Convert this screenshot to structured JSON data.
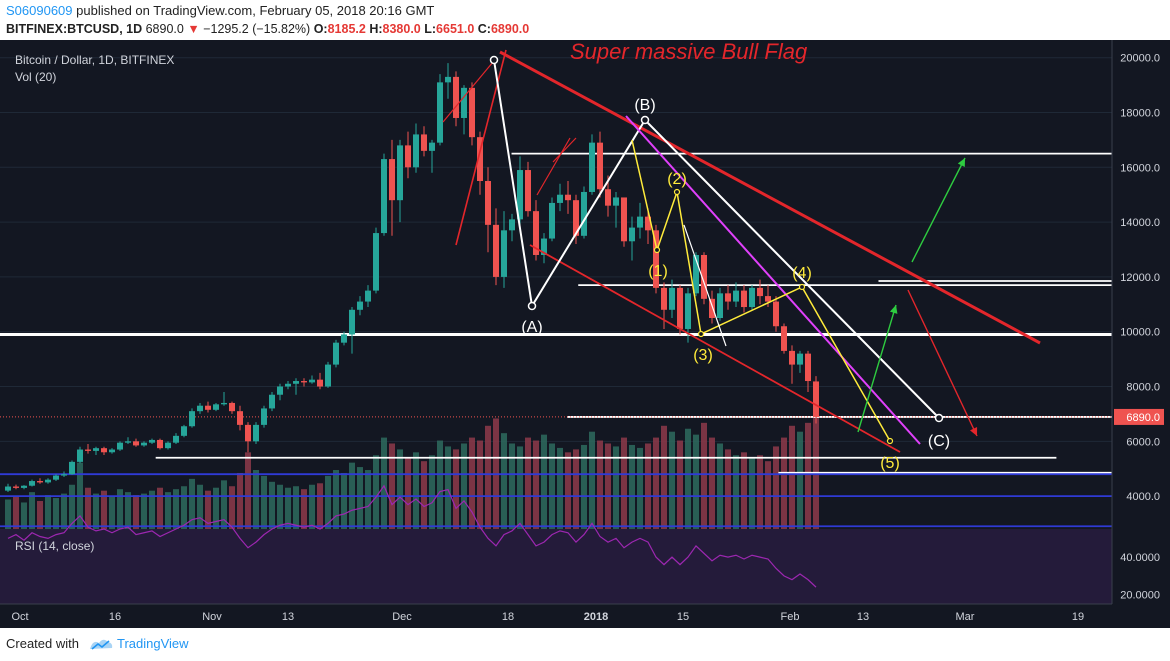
{
  "header": {
    "username": "S06090609",
    "published_text": "published on TradingView.com, February 05, 2018 20:16 GMT",
    "symbol": "BITFINEX:BTCUSD, 1D",
    "last_price": "6890.0",
    "change_text": "−1295.2 (−15.82%)",
    "o_label": "O:",
    "o_value": "8185.2",
    "h_label": "H:",
    "h_value": "8380.0",
    "l_label": "L:",
    "l_value": "6651.0",
    "c_label": "C:",
    "c_value": "6890.0"
  },
  "footer": {
    "created_with": "Created with",
    "brand": "TradingView"
  },
  "colors": {
    "bg": "#131722",
    "up": "#26a69a",
    "down": "#ef5350",
    "grid": "#1f2937",
    "rsi_bg": "#241b3a",
    "rsi_line": "#9c27b0",
    "price_badge": "#ef5350"
  },
  "chart_data": {
    "type": "candlestick",
    "title": "Bitcoin / Dollar, 1D, BITFINEX",
    "volume_label": "Vol (20)",
    "rsi_label": "RSI (14, close)",
    "annotation_title": "Super massive Bull Flag",
    "price_axis_ticks": [
      "20000.0",
      "18000.0",
      "16000.0",
      "14000.0",
      "12000.0",
      "10000.0",
      "8000.0",
      "6000.0",
      "4000.0"
    ],
    "rsi_axis_ticks": [
      "40.0000",
      "20.0000"
    ],
    "current_price_label": "6890.0",
    "x_ticks": [
      "Oct",
      "16",
      "Nov",
      "13",
      "Dec",
      "18",
      "2018",
      "15",
      "Feb",
      "13",
      "Mar",
      "19"
    ],
    "ylim": [
      2800,
      20500
    ],
    "rsi_ylim": [
      15,
      55
    ],
    "candles": [
      {
        "o": 4200,
        "h": 4450,
        "l": 4150,
        "c": 4350
      },
      {
        "o": 4350,
        "h": 4420,
        "l": 4250,
        "c": 4300
      },
      {
        "o": 4300,
        "h": 4400,
        "l": 4250,
        "c": 4380
      },
      {
        "o": 4380,
        "h": 4600,
        "l": 4350,
        "c": 4550
      },
      {
        "o": 4550,
        "h": 4650,
        "l": 4450,
        "c": 4500
      },
      {
        "o": 4500,
        "h": 4650,
        "l": 4450,
        "c": 4600
      },
      {
        "o": 4600,
        "h": 4800,
        "l": 4550,
        "c": 4750
      },
      {
        "o": 4750,
        "h": 4900,
        "l": 4700,
        "c": 4800
      },
      {
        "o": 4800,
        "h": 5300,
        "l": 4780,
        "c": 5250
      },
      {
        "o": 5250,
        "h": 5800,
        "l": 5200,
        "c": 5700
      },
      {
        "o": 5700,
        "h": 5900,
        "l": 5550,
        "c": 5650
      },
      {
        "o": 5650,
        "h": 5800,
        "l": 5500,
        "c": 5750
      },
      {
        "o": 5750,
        "h": 5800,
        "l": 5500,
        "c": 5600
      },
      {
        "o": 5600,
        "h": 5750,
        "l": 5550,
        "c": 5700
      },
      {
        "o": 5700,
        "h": 6000,
        "l": 5650,
        "c": 5950
      },
      {
        "o": 5950,
        "h": 6150,
        "l": 5900,
        "c": 6000
      },
      {
        "o": 6000,
        "h": 6100,
        "l": 5800,
        "c": 5850
      },
      {
        "o": 5850,
        "h": 6000,
        "l": 5800,
        "c": 5950
      },
      {
        "o": 5950,
        "h": 6100,
        "l": 5900,
        "c": 6050
      },
      {
        "o": 6050,
        "h": 6100,
        "l": 5700,
        "c": 5750
      },
      {
        "o": 5750,
        "h": 6000,
        "l": 5700,
        "c": 5950
      },
      {
        "o": 5950,
        "h": 6300,
        "l": 5900,
        "c": 6200
      },
      {
        "o": 6200,
        "h": 6600,
        "l": 6150,
        "c": 6550
      },
      {
        "o": 6550,
        "h": 7200,
        "l": 6500,
        "c": 7100
      },
      {
        "o": 7100,
        "h": 7400,
        "l": 7000,
        "c": 7300
      },
      {
        "o": 7300,
        "h": 7450,
        "l": 7050,
        "c": 7150
      },
      {
        "o": 7150,
        "h": 7400,
        "l": 7100,
        "c": 7350
      },
      {
        "o": 7350,
        "h": 7800,
        "l": 7300,
        "c": 7400
      },
      {
        "o": 7400,
        "h": 7450,
        "l": 7000,
        "c": 7100
      },
      {
        "o": 7100,
        "h": 7300,
        "l": 6400,
        "c": 6600
      },
      {
        "o": 6600,
        "h": 6700,
        "l": 5600,
        "c": 6000
      },
      {
        "o": 6000,
        "h": 6700,
        "l": 5900,
        "c": 6600
      },
      {
        "o": 6600,
        "h": 7300,
        "l": 6500,
        "c": 7200
      },
      {
        "o": 7200,
        "h": 7800,
        "l": 7100,
        "c": 7700
      },
      {
        "o": 7700,
        "h": 8100,
        "l": 7500,
        "c": 8000
      },
      {
        "o": 8000,
        "h": 8200,
        "l": 7900,
        "c": 8100
      },
      {
        "o": 8100,
        "h": 8300,
        "l": 7700,
        "c": 8200
      },
      {
        "o": 8200,
        "h": 8300,
        "l": 8000,
        "c": 8150
      },
      {
        "o": 8150,
        "h": 8400,
        "l": 8100,
        "c": 8250
      },
      {
        "o": 8250,
        "h": 8500,
        "l": 7900,
        "c": 8000
      },
      {
        "o": 8000,
        "h": 8900,
        "l": 7950,
        "c": 8800
      },
      {
        "o": 8800,
        "h": 9700,
        "l": 8700,
        "c": 9600
      },
      {
        "o": 9600,
        "h": 10000,
        "l": 9500,
        "c": 9900
      },
      {
        "o": 9900,
        "h": 10900,
        "l": 9200,
        "c": 10800
      },
      {
        "o": 10800,
        "h": 11300,
        "l": 10600,
        "c": 11100
      },
      {
        "o": 11100,
        "h": 11700,
        "l": 10900,
        "c": 11500
      },
      {
        "o": 11500,
        "h": 13800,
        "l": 11400,
        "c": 13600
      },
      {
        "o": 13600,
        "h": 16500,
        "l": 13500,
        "c": 16300
      },
      {
        "o": 16300,
        "h": 17000,
        "l": 13500,
        "c": 14800
      },
      {
        "o": 14800,
        "h": 17000,
        "l": 14000,
        "c": 16800
      },
      {
        "o": 16800,
        "h": 17300,
        "l": 15600,
        "c": 16000
      },
      {
        "o": 16000,
        "h": 17600,
        "l": 15800,
        "c": 17200
      },
      {
        "o": 17200,
        "h": 17500,
        "l": 16400,
        "c": 16600
      },
      {
        "o": 16600,
        "h": 17000,
        "l": 15800,
        "c": 16900
      },
      {
        "o": 16900,
        "h": 19400,
        "l": 16800,
        "c": 19100
      },
      {
        "o": 19100,
        "h": 19800,
        "l": 18500,
        "c": 19300
      },
      {
        "o": 19300,
        "h": 19500,
        "l": 17500,
        "c": 17800
      },
      {
        "o": 17800,
        "h": 19000,
        "l": 17200,
        "c": 18900
      },
      {
        "o": 18900,
        "h": 19100,
        "l": 16800,
        "c": 17100
      },
      {
        "o": 17100,
        "h": 17300,
        "l": 15000,
        "c": 15500
      },
      {
        "o": 15500,
        "h": 16000,
        "l": 12900,
        "c": 13900
      },
      {
        "o": 13900,
        "h": 14500,
        "l": 11700,
        "c": 12000
      },
      {
        "o": 12000,
        "h": 14400,
        "l": 11600,
        "c": 13700
      },
      {
        "o": 13700,
        "h": 14300,
        "l": 13300,
        "c": 14100
      },
      {
        "o": 14100,
        "h": 16400,
        "l": 13800,
        "c": 15900
      },
      {
        "o": 15900,
        "h": 16200,
        "l": 14200,
        "c": 14400
      },
      {
        "o": 14400,
        "h": 14800,
        "l": 12600,
        "c": 12800
      },
      {
        "o": 12800,
        "h": 13600,
        "l": 12500,
        "c": 13400
      },
      {
        "o": 13400,
        "h": 14900,
        "l": 13300,
        "c": 14700
      },
      {
        "o": 14700,
        "h": 15400,
        "l": 14400,
        "c": 15000
      },
      {
        "o": 15000,
        "h": 15500,
        "l": 14300,
        "c": 14800
      },
      {
        "o": 14800,
        "h": 15000,
        "l": 13200,
        "c": 13500
      },
      {
        "o": 13500,
        "h": 15300,
        "l": 13400,
        "c": 15100
      },
      {
        "o": 15100,
        "h": 17200,
        "l": 15000,
        "c": 16900
      },
      {
        "o": 16900,
        "h": 17300,
        "l": 14900,
        "c": 15200
      },
      {
        "o": 15200,
        "h": 15700,
        "l": 14200,
        "c": 14600
      },
      {
        "o": 14600,
        "h": 15100,
        "l": 13800,
        "c": 14900
      },
      {
        "o": 14900,
        "h": 14900,
        "l": 13100,
        "c": 13300
      },
      {
        "o": 13300,
        "h": 14200,
        "l": 12600,
        "c": 13800
      },
      {
        "o": 13800,
        "h": 14700,
        "l": 13400,
        "c": 14200
      },
      {
        "o": 14200,
        "h": 14500,
        "l": 13200,
        "c": 13700
      },
      {
        "o": 13700,
        "h": 13900,
        "l": 11400,
        "c": 11600
      },
      {
        "o": 11600,
        "h": 11800,
        "l": 10100,
        "c": 10800
      },
      {
        "o": 10800,
        "h": 11900,
        "l": 10500,
        "c": 11600
      },
      {
        "o": 11600,
        "h": 11700,
        "l": 9900,
        "c": 10100
      },
      {
        "o": 10100,
        "h": 11600,
        "l": 9600,
        "c": 11400
      },
      {
        "o": 11400,
        "h": 12900,
        "l": 11300,
        "c": 12800
      },
      {
        "o": 12800,
        "h": 12900,
        "l": 11000,
        "c": 11200
      },
      {
        "o": 11200,
        "h": 11500,
        "l": 10300,
        "c": 10500
      },
      {
        "o": 10500,
        "h": 11600,
        "l": 10400,
        "c": 11400
      },
      {
        "o": 11400,
        "h": 11700,
        "l": 10800,
        "c": 11100
      },
      {
        "o": 11100,
        "h": 11800,
        "l": 10900,
        "c": 11500
      },
      {
        "o": 11500,
        "h": 11700,
        "l": 10700,
        "c": 10900
      },
      {
        "o": 10900,
        "h": 11700,
        "l": 10800,
        "c": 11600
      },
      {
        "o": 11600,
        "h": 11900,
        "l": 11000,
        "c": 11300
      },
      {
        "o": 11300,
        "h": 11700,
        "l": 10900,
        "c": 11100
      },
      {
        "o": 11100,
        "h": 11300,
        "l": 10000,
        "c": 10200
      },
      {
        "o": 10200,
        "h": 10300,
        "l": 9200,
        "c": 9300
      },
      {
        "o": 9300,
        "h": 9500,
        "l": 8100,
        "c": 8800
      },
      {
        "o": 8800,
        "h": 9300,
        "l": 8500,
        "c": 9200
      },
      {
        "o": 9200,
        "h": 9300,
        "l": 7800,
        "c": 8200
      },
      {
        "o": 8185.2,
        "h": 8380,
        "l": 6651,
        "c": 6890
      }
    ],
    "volumes": [
      20,
      22,
      18,
      25,
      19,
      23,
      21,
      24,
      30,
      45,
      28,
      24,
      26,
      22,
      27,
      25,
      23,
      24,
      26,
      28,
      25,
      27,
      29,
      34,
      30,
      26,
      28,
      33,
      29,
      38,
      52,
      40,
      36,
      32,
      30,
      28,
      29,
      27,
      30,
      31,
      36,
      40,
      38,
      45,
      42,
      40,
      50,
      62,
      58,
      54,
      48,
      52,
      46,
      50,
      60,
      56,
      54,
      58,
      62,
      60,
      70,
      75,
      65,
      58,
      56,
      62,
      60,
      64,
      58,
      55,
      52,
      54,
      57,
      66,
      60,
      58,
      56,
      62,
      57,
      55,
      58,
      62,
      70,
      66,
      60,
      68,
      64,
      72,
      62,
      58,
      54,
      50,
      52,
      48,
      50,
      46,
      56,
      62,
      70,
      66,
      72,
      78
    ],
    "rsi": [
      50,
      52,
      49,
      53,
      51,
      50,
      52,
      53,
      58,
      62,
      56,
      54,
      55,
      53,
      55,
      56,
      52,
      53,
      54,
      51,
      53,
      55,
      57,
      60,
      61,
      58,
      59,
      60,
      56,
      50,
      45,
      48,
      52,
      55,
      57,
      58,
      57,
      56,
      57,
      55,
      58,
      62,
      63,
      65,
      66,
      67,
      72,
      78,
      68,
      72,
      68,
      71,
      67,
      69,
      75,
      76,
      66,
      70,
      64,
      56,
      50,
      46,
      52,
      54,
      58,
      52,
      46,
      48,
      52,
      54,
      53,
      48,
      52,
      58,
      51,
      48,
      50,
      45,
      48,
      50,
      48,
      40,
      36,
      40,
      36,
      40,
      46,
      42,
      38,
      41,
      40,
      41,
      39,
      41,
      40,
      39,
      34,
      30,
      28,
      31,
      28,
      24
    ],
    "levels": [
      {
        "name": "resistance-16500",
        "price": 16500,
        "x0": 0.46,
        "x1": 1.0,
        "color": "#ffffff"
      },
      {
        "name": "support-11700",
        "price": 11700,
        "x0": 0.52,
        "x1": 1.0,
        "color": "#ffffff"
      },
      {
        "name": "support-11850",
        "price": 11850,
        "x0": 0.79,
        "x1": 1.0,
        "color": "#ffffff"
      },
      {
        "name": "support-9900",
        "price": 9900,
        "x0": 0.0,
        "x1": 1.0,
        "color": "#ffffff"
      },
      {
        "name": "support-6890",
        "price": 6890,
        "x0": 0.51,
        "x1": 1.0,
        "color": "#ffffff"
      },
      {
        "name": "support-5400",
        "price": 5400,
        "x0": 0.14,
        "x1": 0.95,
        "color": "#ffffff"
      },
      {
        "name": "support-4850",
        "price": 4850,
        "x0": 0.7,
        "x1": 1.0,
        "color": "#ffffff"
      },
      {
        "name": "blue-4800",
        "price": 4800,
        "x0": 0.0,
        "x1": 1.0,
        "color": "#2f3ad6"
      },
      {
        "name": "blue-4000",
        "price": 4000,
        "x0": 0.0,
        "x1": 1.0,
        "color": "#2f3ad6"
      },
      {
        "name": "blue-2900",
        "price": 2900,
        "x0": 0.0,
        "x1": 1.0,
        "color": "#2f3ad6"
      }
    ],
    "wave_labels_abc": [
      "(A)",
      "(B)",
      "(C)"
    ],
    "wave_labels_12345": [
      "(1)",
      "(2)",
      "(3)",
      "(4)",
      "(5)"
    ]
  }
}
